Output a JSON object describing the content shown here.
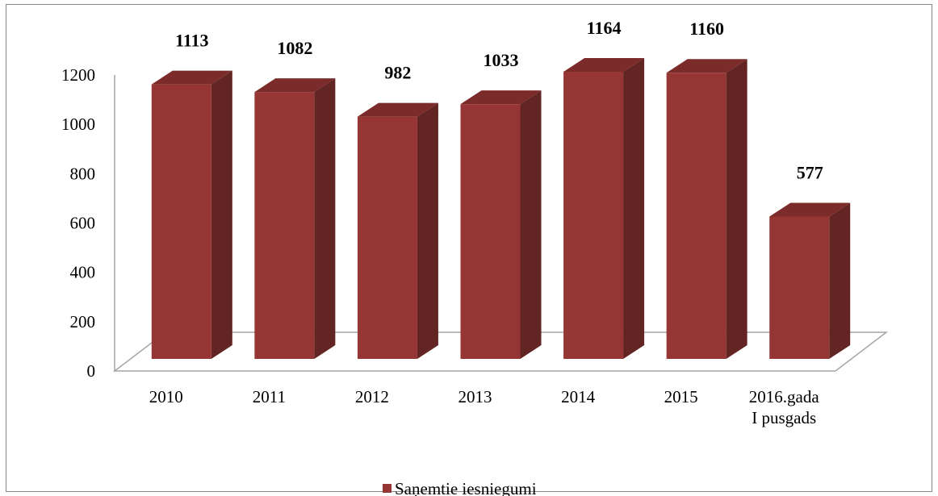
{
  "chart_data": {
    "type": "bar3d",
    "categories": [
      "2010",
      "2011",
      "2012",
      "2013",
      "2014",
      "2015",
      "2016.gada\nI pusgads"
    ],
    "series": [
      {
        "name": "Saņemtie iesniegumi",
        "color": "#963634",
        "values": [
          1113,
          1082,
          982,
          1033,
          1164,
          1160,
          577
        ]
      }
    ],
    "ylim": [
      0,
      1200
    ],
    "yticks": [
      0,
      200,
      400,
      600,
      800,
      1000,
      1200
    ],
    "grid": false,
    "legend": "bottom"
  }
}
